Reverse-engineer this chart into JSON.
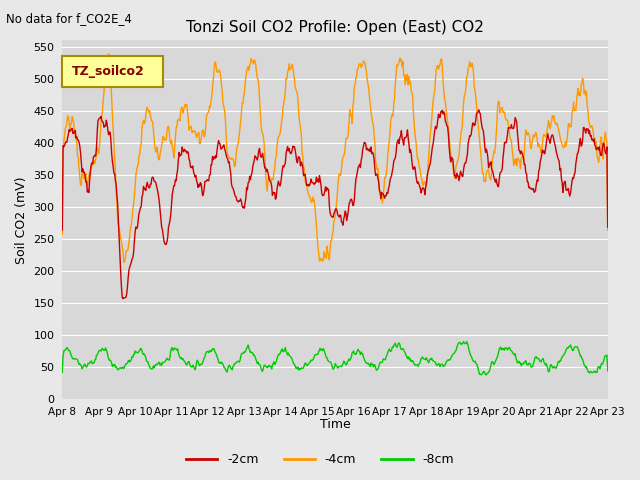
{
  "title": "Tonzi Soil CO2 Profile: Open (East) CO2",
  "top_left_text": "No data for f_CO2E_4",
  "ylabel": "Soil CO2 (mV)",
  "xlabel": "Time",
  "legend_label": "TZ_soilco2",
  "ylim": [
    0,
    560
  ],
  "yticks": [
    0,
    50,
    100,
    150,
    200,
    250,
    300,
    350,
    400,
    450,
    500,
    550
  ],
  "xtick_labels": [
    "Apr 8",
    "Apr 9",
    "Apr 10",
    "Apr 11",
    "Apr 12",
    "Apr 13",
    "Apr 14",
    "Apr 15",
    "Apr 16",
    "Apr 17",
    "Apr 18",
    "Apr 19",
    "Apr 20",
    "Apr 21",
    "Apr 22",
    "Apr 23"
  ],
  "color_2cm": "#cc0000",
  "color_4cm": "#ff9900",
  "color_8cm": "#00cc00",
  "bg_color": "#e8e8e8",
  "plot_bg_color": "#d8d8d8",
  "legend_bg": "#ffff99",
  "legend_border": "#cc9900",
  "line_width": 1.0
}
